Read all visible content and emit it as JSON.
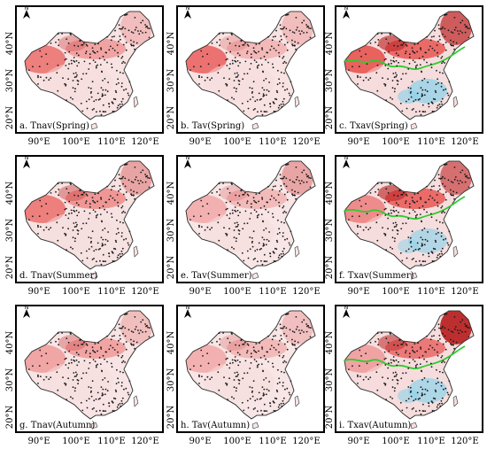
{
  "figure": {
    "colors": {
      "warm_light": "#f6dcdc",
      "warm_mid": "#ef9a9a",
      "warm_strong": "#e53935",
      "warm_dark": "#b71c1c",
      "cool": "#8fd3ea",
      "boundary_line": "#2ecc2e",
      "station_dot": "#1a1a1a"
    },
    "north_arrow_label": "N",
    "x_ticks": [
      "90°E",
      "100°E",
      "110°E",
      "120°E"
    ],
    "y_ticks": [
      "40°N",
      "30°N",
      "20°N"
    ],
    "panels": [
      {
        "label": "a. Tnav(Spring)",
        "column": "Tnav",
        "season": "Spring",
        "intensity": 0.55,
        "hot_west": 0.7,
        "hot_north": 0.5,
        "hot_northeast": 0.2,
        "cool_south": 0.0,
        "green_line": false
      },
      {
        "label": "b. Tav(Spring)",
        "column": "Tav",
        "season": "Spring",
        "intensity": 0.55,
        "hot_west": 0.8,
        "hot_north": 0.3,
        "hot_northeast": 0.2,
        "cool_south": 0.0,
        "green_line": false
      },
      {
        "label": "c. Txav(Spring)",
        "column": "Txav",
        "season": "Spring",
        "intensity": 0.9,
        "hot_west": 0.9,
        "hot_north": 0.9,
        "hot_northeast": 0.8,
        "cool_south": 0.7,
        "green_line": true
      },
      {
        "label": "d. Tnav(Summer)",
        "column": "Tnav",
        "season": "Summer",
        "intensity": 0.6,
        "hot_west": 0.7,
        "hot_north": 0.6,
        "hot_northeast": 0.4,
        "cool_south": 0.0,
        "green_line": false
      },
      {
        "label": "e. Tav(Summer)",
        "column": "Tav",
        "season": "Summer",
        "intensity": 0.35,
        "hot_west": 0.3,
        "hot_north": 0.3,
        "hot_northeast": 0.4,
        "cool_south": 0.0,
        "green_line": false
      },
      {
        "label": "f. Txav(Summer)",
        "column": "Txav",
        "season": "Summer",
        "intensity": 0.85,
        "hot_west": 0.6,
        "hot_north": 0.9,
        "hot_northeast": 0.7,
        "cool_south": 0.5,
        "green_line": true
      },
      {
        "label": "g. Tnav(Autumn)",
        "column": "Tnav",
        "season": "Autumn",
        "intensity": 0.45,
        "hot_west": 0.4,
        "hot_north": 0.5,
        "hot_northeast": 0.2,
        "cool_south": 0.0,
        "green_line": false
      },
      {
        "label": "h. Tav(Autumn)",
        "column": "Tav",
        "season": "Autumn",
        "intensity": 0.35,
        "hot_west": 0.3,
        "hot_north": 0.3,
        "hot_northeast": 0.2,
        "cool_south": 0.0,
        "green_line": false
      },
      {
        "label": "i. Txav(Autumn)",
        "column": "Txav",
        "season": "Autumn",
        "intensity": 0.9,
        "hot_west": 0.4,
        "hot_north": 0.8,
        "hot_northeast": 1.0,
        "cool_south": 0.6,
        "green_line": true
      }
    ]
  }
}
